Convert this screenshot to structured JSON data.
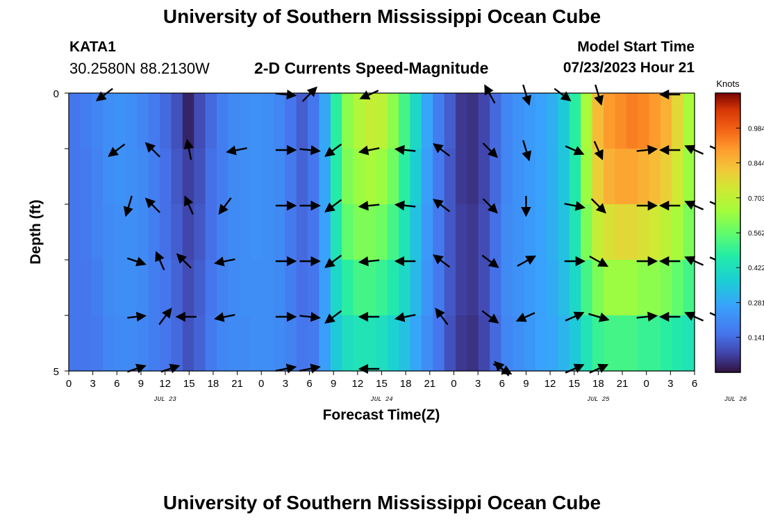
{
  "header": {
    "title_top": "University of Southern Mississippi Ocean Cube",
    "title_bottom": "University of Southern Mississippi Ocean Cube",
    "station_id": "KATA1",
    "station_coords": "30.2580N  88.2130W",
    "model_start_label": "Model Start Time",
    "model_start_value": "07/23/2023 Hour 21"
  },
  "chart_data": {
    "type": "heatmap",
    "title": "2-D Currents Speed-Magnitude",
    "xlabel": "Forecast Time(Z)",
    "ylabel": "Depth (ft)",
    "y_ticks": [
      "0",
      "5"
    ],
    "ylim": [
      0,
      5
    ],
    "x_tick_labels": [
      "0",
      "3",
      "6",
      "9",
      "12",
      "15",
      "18",
      "21",
      "0",
      "3",
      "6",
      "9",
      "12",
      "15",
      "18",
      "21",
      "0",
      "3",
      "6",
      "9",
      "12",
      "15",
      "18",
      "21",
      "0",
      "3",
      "6"
    ],
    "date_labels": [
      {
        "label": "JUL 23",
        "tick_index": 4
      },
      {
        "label": "JUL 24",
        "tick_index": 13
      },
      {
        "label": "JUL 25",
        "tick_index": 22
      },
      {
        "label": "JUL 26",
        "tick_index": 27.7
      }
    ],
    "colorbar": {
      "unit": "Knots",
      "min": 0,
      "max": 1.125,
      "tick_values": [
        0.141,
        0.281,
        0.422,
        0.562,
        0.703,
        0.844,
        0.984
      ],
      "tick_labels": [
        "0.141",
        "0.281",
        "0.422",
        "0.562",
        "0.703",
        "0.844",
        "0.984"
      ]
    },
    "depth_rows": 5,
    "speed_columns": [
      [
        0.16,
        0.16,
        0.16,
        0.16,
        0.16
      ],
      [
        0.18,
        0.17,
        0.17,
        0.16,
        0.16
      ],
      [
        0.2,
        0.19,
        0.19,
        0.18,
        0.17
      ],
      [
        0.22,
        0.22,
        0.21,
        0.21,
        0.2
      ],
      [
        0.23,
        0.23,
        0.22,
        0.22,
        0.21
      ],
      [
        0.22,
        0.22,
        0.22,
        0.22,
        0.21
      ],
      [
        0.2,
        0.21,
        0.21,
        0.21,
        0.2
      ],
      [
        0.17,
        0.18,
        0.18,
        0.18,
        0.18
      ],
      [
        0.14,
        0.15,
        0.15,
        0.16,
        0.16
      ],
      [
        0.1,
        0.11,
        0.12,
        0.13,
        0.14
      ],
      [
        0.03,
        0.07,
        0.08,
        0.09,
        0.1
      ],
      [
        0.09,
        0.1,
        0.11,
        0.12,
        0.13
      ],
      [
        0.14,
        0.15,
        0.15,
        0.16,
        0.17
      ],
      [
        0.18,
        0.18,
        0.19,
        0.19,
        0.2
      ],
      [
        0.21,
        0.21,
        0.21,
        0.21,
        0.21
      ],
      [
        0.22,
        0.22,
        0.22,
        0.22,
        0.21
      ],
      [
        0.23,
        0.23,
        0.23,
        0.22,
        0.22
      ],
      [
        0.22,
        0.22,
        0.22,
        0.22,
        0.22
      ],
      [
        0.2,
        0.21,
        0.21,
        0.21,
        0.21
      ],
      [
        0.16,
        0.17,
        0.17,
        0.18,
        0.19
      ],
      [
        0.12,
        0.13,
        0.14,
        0.15,
        0.16
      ],
      [
        0.16,
        0.16,
        0.16,
        0.16,
        0.17
      ],
      [
        0.28,
        0.28,
        0.27,
        0.26,
        0.26
      ],
      [
        0.48,
        0.47,
        0.44,
        0.4,
        0.36
      ],
      [
        0.62,
        0.6,
        0.56,
        0.48,
        0.42
      ],
      [
        0.68,
        0.64,
        0.6,
        0.52,
        0.44
      ],
      [
        0.72,
        0.66,
        0.6,
        0.52,
        0.44
      ],
      [
        0.7,
        0.64,
        0.58,
        0.5,
        0.42
      ],
      [
        0.62,
        0.58,
        0.52,
        0.46,
        0.38
      ],
      [
        0.52,
        0.48,
        0.44,
        0.4,
        0.34
      ],
      [
        0.4,
        0.37,
        0.34,
        0.32,
        0.28
      ],
      [
        0.28,
        0.26,
        0.25,
        0.24,
        0.22
      ],
      [
        0.18,
        0.17,
        0.17,
        0.17,
        0.16
      ],
      [
        0.12,
        0.11,
        0.11,
        0.11,
        0.1
      ],
      [
        0.06,
        0.06,
        0.07,
        0.07,
        0.06
      ],
      [
        0.05,
        0.05,
        0.06,
        0.06,
        0.05
      ],
      [
        0.08,
        0.08,
        0.09,
        0.09,
        0.08
      ],
      [
        0.14,
        0.14,
        0.15,
        0.15,
        0.14
      ],
      [
        0.2,
        0.2,
        0.21,
        0.21,
        0.2
      ],
      [
        0.23,
        0.23,
        0.23,
        0.23,
        0.22
      ],
      [
        0.25,
        0.25,
        0.25,
        0.25,
        0.24
      ],
      [
        0.27,
        0.27,
        0.27,
        0.27,
        0.27
      ],
      [
        0.3,
        0.3,
        0.3,
        0.29,
        0.28
      ],
      [
        0.36,
        0.35,
        0.34,
        0.33,
        0.31
      ],
      [
        0.48,
        0.46,
        0.44,
        0.4,
        0.36
      ],
      [
        0.66,
        0.64,
        0.6,
        0.52,
        0.44
      ],
      [
        0.84,
        0.8,
        0.72,
        0.6,
        0.5
      ],
      [
        0.9,
        0.86,
        0.76,
        0.64,
        0.52
      ],
      [
        0.92,
        0.88,
        0.78,
        0.64,
        0.52
      ],
      [
        0.94,
        0.88,
        0.78,
        0.64,
        0.52
      ],
      [
        0.93,
        0.86,
        0.76,
        0.62,
        0.5
      ],
      [
        0.9,
        0.84,
        0.74,
        0.62,
        0.5
      ],
      [
        0.86,
        0.8,
        0.7,
        0.6,
        0.48
      ],
      [
        0.78,
        0.74,
        0.66,
        0.56,
        0.46
      ],
      [
        0.66,
        0.64,
        0.6,
        0.52,
        0.44
      ]
    ],
    "vectors": [
      {
        "t": 1.5,
        "row": 0,
        "dx": -0.8,
        "dy": 0.6
      },
      {
        "t": 2.0,
        "row": 1,
        "dx": -0.8,
        "dy": 0.6
      },
      {
        "t": 2.5,
        "row": 2,
        "dx": -0.3,
        "dy": 1.0
      },
      {
        "t": 2.8,
        "row": 3,
        "dx": 0.9,
        "dy": 0.3
      },
      {
        "t": 2.8,
        "row": 4,
        "dx": 0.9,
        "dy": -0.1
      },
      {
        "t": 2.8,
        "row": 5,
        "dx": 0.9,
        "dy": -0.3
      },
      {
        "t": 3.5,
        "row": 1,
        "dx": -0.7,
        "dy": -0.7
      },
      {
        "t": 3.5,
        "row": 2,
        "dx": -0.7,
        "dy": -0.7
      },
      {
        "t": 3.8,
        "row": 3,
        "dx": -0.4,
        "dy": -0.9
      },
      {
        "t": 4.0,
        "row": 4,
        "dx": 0.6,
        "dy": -0.8
      },
      {
        "t": 4.2,
        "row": 5,
        "dx": 0.9,
        "dy": -0.3
      },
      {
        "t": 5.0,
        "row": 1,
        "dx": -0.2,
        "dy": -1.0
      },
      {
        "t": 5.0,
        "row": 2,
        "dx": -0.4,
        "dy": -0.9
      },
      {
        "t": 4.8,
        "row": 3,
        "dx": -0.7,
        "dy": -0.7
      },
      {
        "t": 4.9,
        "row": 4,
        "dx": -1.0,
        "dy": 0.0
      },
      {
        "t": 6.5,
        "row": 2,
        "dx": -0.6,
        "dy": 0.8
      },
      {
        "t": 6.5,
        "row": 3,
        "dx": -1.0,
        "dy": 0.2
      },
      {
        "t": 6.5,
        "row": 4,
        "dx": -1.0,
        "dy": 0.2
      },
      {
        "t": 7.0,
        "row": 1,
        "dx": -1.0,
        "dy": 0.2
      },
      {
        "t": 9.0,
        "row": 0,
        "dx": 1.0,
        "dy": 0.1
      },
      {
        "t": 9.0,
        "row": 1,
        "dx": 1.0,
        "dy": 0.0
      },
      {
        "t": 9.0,
        "row": 2,
        "dx": 1.0,
        "dy": 0.0
      },
      {
        "t": 9.0,
        "row": 3,
        "dx": 1.0,
        "dy": 0.0
      },
      {
        "t": 9.0,
        "row": 4,
        "dx": 1.0,
        "dy": 0.0
      },
      {
        "t": 9.0,
        "row": 5,
        "dx": 1.0,
        "dy": -0.2
      },
      {
        "t": 10.0,
        "row": 0,
        "dx": 0.7,
        "dy": -0.7
      },
      {
        "t": 10.0,
        "row": 1,
        "dx": 1.0,
        "dy": 0.1
      },
      {
        "t": 10.0,
        "row": 2,
        "dx": 1.0,
        "dy": 0.0
      },
      {
        "t": 10.0,
        "row": 3,
        "dx": 1.0,
        "dy": 0.0
      },
      {
        "t": 10.0,
        "row": 4,
        "dx": 1.0,
        "dy": 0.1
      },
      {
        "t": 10.0,
        "row": 5,
        "dx": 1.0,
        "dy": -0.2
      },
      {
        "t": 11.0,
        "row": 1,
        "dx": -0.8,
        "dy": 0.6
      },
      {
        "t": 11.0,
        "row": 2,
        "dx": -0.8,
        "dy": 0.6
      },
      {
        "t": 11.0,
        "row": 3,
        "dx": -0.8,
        "dy": 0.6
      },
      {
        "t": 11.0,
        "row": 4,
        "dx": -0.8,
        "dy": 0.6
      },
      {
        "t": 12.5,
        "row": 0,
        "dx": -0.9,
        "dy": 0.4
      },
      {
        "t": 12.5,
        "row": 1,
        "dx": -1.0,
        "dy": 0.2
      },
      {
        "t": 12.5,
        "row": 2,
        "dx": -1.0,
        "dy": 0.1
      },
      {
        "t": 12.5,
        "row": 3,
        "dx": -1.0,
        "dy": 0.1
      },
      {
        "t": 12.5,
        "row": 4,
        "dx": -1.0,
        "dy": 0.0
      },
      {
        "t": 12.5,
        "row": 5,
        "dx": -1.0,
        "dy": 0.0
      },
      {
        "t": 14.0,
        "row": 1,
        "dx": -1.0,
        "dy": -0.1
      },
      {
        "t": 14.0,
        "row": 2,
        "dx": -1.0,
        "dy": -0.1
      },
      {
        "t": 14.0,
        "row": 3,
        "dx": -1.0,
        "dy": 0.0
      },
      {
        "t": 14.0,
        "row": 4,
        "dx": -1.0,
        "dy": 0.2
      },
      {
        "t": 15.5,
        "row": 1,
        "dx": -0.8,
        "dy": -0.6
      },
      {
        "t": 15.5,
        "row": 2,
        "dx": -0.8,
        "dy": -0.6
      },
      {
        "t": 15.5,
        "row": 3,
        "dx": -0.8,
        "dy": -0.6
      },
      {
        "t": 15.5,
        "row": 4,
        "dx": -0.6,
        "dy": -0.8
      },
      {
        "t": 17.5,
        "row": 0,
        "dx": -0.5,
        "dy": -0.9
      },
      {
        "t": 17.5,
        "row": 1,
        "dx": 0.7,
        "dy": 0.7
      },
      {
        "t": 17.5,
        "row": 2,
        "dx": 0.7,
        "dy": 0.7
      },
      {
        "t": 17.5,
        "row": 3,
        "dx": 0.8,
        "dy": 0.6
      },
      {
        "t": 17.5,
        "row": 4,
        "dx": 0.8,
        "dy": 0.6
      },
      {
        "t": 18.0,
        "row": 5,
        "dx": -0.7,
        "dy": -0.7
      },
      {
        "t": 19.0,
        "row": 0,
        "dx": 0.3,
        "dy": 1.0
      },
      {
        "t": 19.0,
        "row": 1,
        "dx": 0.3,
        "dy": 1.0
      },
      {
        "t": 19.0,
        "row": 2,
        "dx": 0.0,
        "dy": 1.0
      },
      {
        "t": 19.0,
        "row": 3,
        "dx": 0.9,
        "dy": -0.5
      },
      {
        "t": 19.0,
        "row": 4,
        "dx": -0.9,
        "dy": 0.4
      },
      {
        "t": 18.0,
        "row": 5,
        "dx": 0.9,
        "dy": 0.5
      },
      {
        "t": 20.5,
        "row": 0,
        "dx": 0.8,
        "dy": 0.6
      },
      {
        "t": 21.0,
        "row": 1,
        "dx": 0.9,
        "dy": 0.4
      },
      {
        "t": 21.0,
        "row": 2,
        "dx": 1.0,
        "dy": 0.2
      },
      {
        "t": 21.0,
        "row": 3,
        "dx": 1.0,
        "dy": 0.0
      },
      {
        "t": 21.0,
        "row": 4,
        "dx": 0.9,
        "dy": -0.4
      },
      {
        "t": 21.0,
        "row": 5,
        "dx": 0.9,
        "dy": -0.4
      },
      {
        "t": 22.0,
        "row": 0,
        "dx": 0.3,
        "dy": 1.0
      },
      {
        "t": 22.0,
        "row": 1,
        "dx": 0.4,
        "dy": 0.9
      },
      {
        "t": 22.0,
        "row": 2,
        "dx": 0.7,
        "dy": 0.7
      },
      {
        "t": 22.0,
        "row": 3,
        "dx": 0.9,
        "dy": 0.5
      },
      {
        "t": 22.0,
        "row": 4,
        "dx": 1.0,
        "dy": 0.3
      },
      {
        "t": 22.0,
        "row": 5,
        "dx": 0.9,
        "dy": -0.4
      },
      {
        "t": 24.0,
        "row": 1,
        "dx": 1.0,
        "dy": -0.1
      },
      {
        "t": 24.0,
        "row": 2,
        "dx": 1.0,
        "dy": 0.0
      },
      {
        "t": 24.0,
        "row": 3,
        "dx": 1.0,
        "dy": 0.0
      },
      {
        "t": 24.0,
        "row": 4,
        "dx": 1.0,
        "dy": -0.1
      },
      {
        "t": 25.0,
        "row": 0,
        "dx": -1.0,
        "dy": 0.0
      },
      {
        "t": 25.0,
        "row": 1,
        "dx": -1.0,
        "dy": 0.0
      },
      {
        "t": 25.0,
        "row": 2,
        "dx": -1.0,
        "dy": 0.0
      },
      {
        "t": 25.0,
        "row": 3,
        "dx": -1.0,
        "dy": 0.0
      },
      {
        "t": 25.0,
        "row": 4,
        "dx": -1.0,
        "dy": 0.0
      },
      {
        "t": 26.0,
        "row": 1,
        "dx": -0.9,
        "dy": -0.4
      },
      {
        "t": 26.0,
        "row": 2,
        "dx": -0.9,
        "dy": -0.4
      },
      {
        "t": 26.0,
        "row": 3,
        "dx": -0.9,
        "dy": -0.4
      },
      {
        "t": 26.0,
        "row": 4,
        "dx": -0.9,
        "dy": -0.4
      },
      {
        "t": 27.0,
        "row": 1,
        "dx": 0.9,
        "dy": 0.4
      },
      {
        "t": 27.0,
        "row": 2,
        "dx": 0.9,
        "dy": 0.4
      },
      {
        "t": 27.0,
        "row": 3,
        "dx": 0.9,
        "dy": 0.4
      },
      {
        "t": 27.0,
        "row": 4,
        "dx": 0.9,
        "dy": 0.4
      }
    ]
  }
}
